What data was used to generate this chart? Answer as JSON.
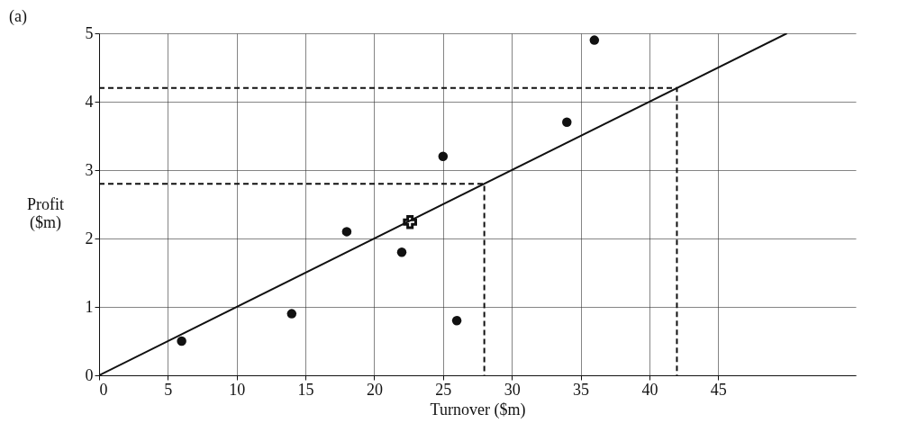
{
  "chart_data": {
    "type": "scatter",
    "xlabel": "Turnover ($m)",
    "ylabel": "Profit ($m)",
    "annotations": [
      "(a)"
    ],
    "xlim": [
      0,
      55
    ],
    "ylim": [
      0,
      5
    ],
    "xticks": [
      0,
      5,
      10,
      15,
      20,
      25,
      30,
      35,
      40,
      45
    ],
    "yticks": [
      0,
      1,
      2,
      3,
      4,
      5
    ],
    "grid": true,
    "series": [
      {
        "type": "scatter",
        "color": "#111111",
        "marker": "circle",
        "x": [
          6,
          14,
          18,
          22,
          25,
          26,
          34,
          36
        ],
        "values": [
          0.5,
          0.9,
          2.1,
          1.8,
          3.2,
          0.8,
          3.7,
          4.9
        ]
      },
      {
        "type": "scatter",
        "color": "#111111",
        "marker": "cross",
        "x": [
          22.6
        ],
        "values": [
          2.24
        ]
      },
      {
        "type": "line",
        "color": "#111111",
        "line_style": "solid",
        "x": [
          0,
          50
        ],
        "values": [
          0,
          5
        ]
      },
      {
        "type": "line",
        "color": "#111111",
        "line_style": "dashed",
        "x": [
          0,
          28,
          28
        ],
        "values": [
          2.8,
          2.8,
          0
        ]
      },
      {
        "type": "line",
        "color": "#111111",
        "line_style": "dashed",
        "x": [
          0,
          42,
          42
        ],
        "values": [
          4.2,
          4.2,
          0
        ]
      }
    ]
  }
}
